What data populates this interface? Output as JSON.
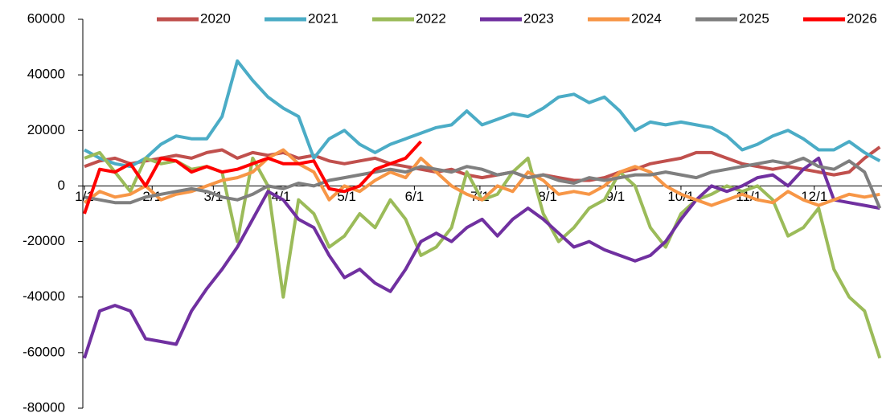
{
  "chart_data": {
    "type": "line",
    "x": [
      0,
      7,
      14,
      21,
      28,
      35,
      42,
      49,
      56,
      63,
      70,
      77,
      84,
      91,
      98,
      105,
      112,
      119,
      126,
      133,
      140,
      147,
      154,
      161,
      168,
      175,
      182,
      189,
      196,
      203,
      210,
      217,
      224,
      231,
      238,
      245,
      252,
      259,
      266,
      273,
      280,
      287,
      294,
      301,
      308,
      315,
      322,
      329,
      336,
      343,
      350,
      357,
      364
    ],
    "xlim": [
      0,
      365
    ],
    "xticks": [
      {
        "value": 0,
        "label": "1/1"
      },
      {
        "value": 31,
        "label": "2/1"
      },
      {
        "value": 59,
        "label": "3/1"
      },
      {
        "value": 90,
        "label": "4/1"
      },
      {
        "value": 120,
        "label": "5/1"
      },
      {
        "value": 151,
        "label": "6/1"
      },
      {
        "value": 181,
        "label": "7/1"
      },
      {
        "value": 212,
        "label": "8/1"
      },
      {
        "value": 243,
        "label": "9/1"
      },
      {
        "value": 273,
        "label": "10/1"
      },
      {
        "value": 304,
        "label": "11/1"
      },
      {
        "value": 334,
        "label": "12/1"
      }
    ],
    "ylim": [
      -80000,
      60000
    ],
    "yticks": [
      -80000,
      -60000,
      -40000,
      -20000,
      0,
      20000,
      40000,
      60000
    ],
    "series": [
      {
        "name": "2020",
        "color": "#c0504d",
        "values": [
          7000,
          9000,
          10000,
          8000,
          9000,
          10000,
          11000,
          10000,
          12000,
          13000,
          10000,
          12000,
          11000,
          12000,
          10000,
          11000,
          9000,
          8000,
          9000,
          10000,
          8000,
          7000,
          6000,
          5000,
          6000,
          4000,
          3000,
          4000,
          5000,
          3000,
          4000,
          3000,
          2000,
          2000,
          3000,
          5000,
          6000,
          8000,
          9000,
          10000,
          12000,
          12000,
          10000,
          8000,
          7000,
          6000,
          7000,
          6000,
          5000,
          4000,
          5000,
          10000,
          14000
        ]
      },
      {
        "name": "2021",
        "color": "#4bacc6",
        "values": [
          13000,
          10000,
          8000,
          7000,
          10000,
          15000,
          18000,
          17000,
          17000,
          25000,
          45000,
          38000,
          32000,
          28000,
          25000,
          10000,
          17000,
          20000,
          15000,
          12000,
          15000,
          17000,
          19000,
          21000,
          22000,
          27000,
          22000,
          24000,
          26000,
          25000,
          28000,
          32000,
          33000,
          30000,
          32000,
          27000,
          20000,
          23000,
          22000,
          23000,
          22000,
          21000,
          18000,
          13000,
          15000,
          18000,
          20000,
          17000,
          13000,
          13000,
          16000,
          12000,
          9000
        ]
      },
      {
        "name": "2022",
        "color": "#9bbb59",
        "values": [
          10000,
          12000,
          5000,
          -2000,
          10000,
          8000,
          9000,
          6000,
          7000,
          5000,
          -20000,
          10000,
          0,
          -40000,
          -5000,
          -10000,
          -22000,
          -18000,
          -10000,
          -15000,
          -5000,
          -12000,
          -25000,
          -22000,
          -15000,
          5000,
          -5000,
          -3000,
          5000,
          10000,
          -10000,
          -20000,
          -15000,
          -8000,
          -5000,
          5000,
          0,
          -15000,
          -22000,
          -10000,
          -5000,
          -3000,
          0,
          -2000,
          0,
          -5000,
          -18000,
          -15000,
          -8000,
          -30000,
          -40000,
          -45000,
          -62000
        ]
      },
      {
        "name": "2023",
        "color": "#7030a0",
        "values": [
          -62000,
          -45000,
          -43000,
          -45000,
          -55000,
          -56000,
          -57000,
          -45000,
          -37000,
          -30000,
          -22000,
          -12000,
          -2000,
          -5000,
          -12000,
          -15000,
          -25000,
          -33000,
          -30000,
          -35000,
          -38000,
          -30000,
          -20000,
          -17000,
          -20000,
          -15000,
          -12000,
          -18000,
          -12000,
          -8000,
          -12000,
          -17000,
          -22000,
          -20000,
          -23000,
          -25000,
          -27000,
          -25000,
          -20000,
          -12000,
          -5000,
          0,
          -2000,
          0,
          3000,
          4000,
          0,
          6000,
          10000,
          -5000,
          -6000,
          -7000,
          -8000
        ]
      },
      {
        "name": "2024",
        "color": "#f79646",
        "values": [
          -6000,
          -2000,
          -4000,
          -3000,
          0,
          -5000,
          -3000,
          -2000,
          0,
          2000,
          3000,
          5000,
          10000,
          13000,
          8000,
          5000,
          -5000,
          0,
          -2000,
          2000,
          5000,
          3000,
          10000,
          5000,
          0,
          -3000,
          -5000,
          0,
          -2000,
          5000,
          2000,
          -3000,
          -2000,
          -3000,
          0,
          5000,
          7000,
          5000,
          0,
          -3000,
          -5000,
          -7000,
          -5000,
          -3000,
          -5000,
          -6000,
          -2000,
          -5000,
          -7000,
          -5000,
          -3000,
          -4000,
          -3000
        ]
      },
      {
        "name": "2025",
        "color": "#7f7f7f",
        "values": [
          -4000,
          -5000,
          -6000,
          -6000,
          -4000,
          -3000,
          -2000,
          -1000,
          -2000,
          -4000,
          -5000,
          -3000,
          0,
          -1000,
          1000,
          0,
          2000,
          3000,
          4000,
          5000,
          6000,
          5000,
          7000,
          6000,
          5000,
          7000,
          6000,
          4000,
          5000,
          3000,
          4000,
          2000,
          1000,
          3000,
          2000,
          3000,
          4000,
          4000,
          5000,
          4000,
          3000,
          5000,
          6000,
          7000,
          8000,
          9000,
          8000,
          10000,
          7000,
          6000,
          9000,
          5000,
          -8000
        ]
      },
      {
        "name": "2026",
        "color": "#ff0000",
        "values": [
          -10000,
          6000,
          5000,
          8000,
          0,
          10000,
          9000,
          5000,
          7000,
          5000,
          6000,
          8000,
          10000,
          8000,
          8000,
          9000,
          -1000,
          -2000,
          0,
          6000,
          8000,
          10000,
          16000,
          null,
          null,
          null,
          null,
          null,
          null,
          null,
          null,
          null,
          null,
          null,
          null,
          null,
          null,
          null,
          null,
          null,
          null,
          null,
          null,
          null,
          null,
          null,
          null,
          null,
          null,
          null,
          null,
          null,
          null
        ]
      }
    ]
  }
}
